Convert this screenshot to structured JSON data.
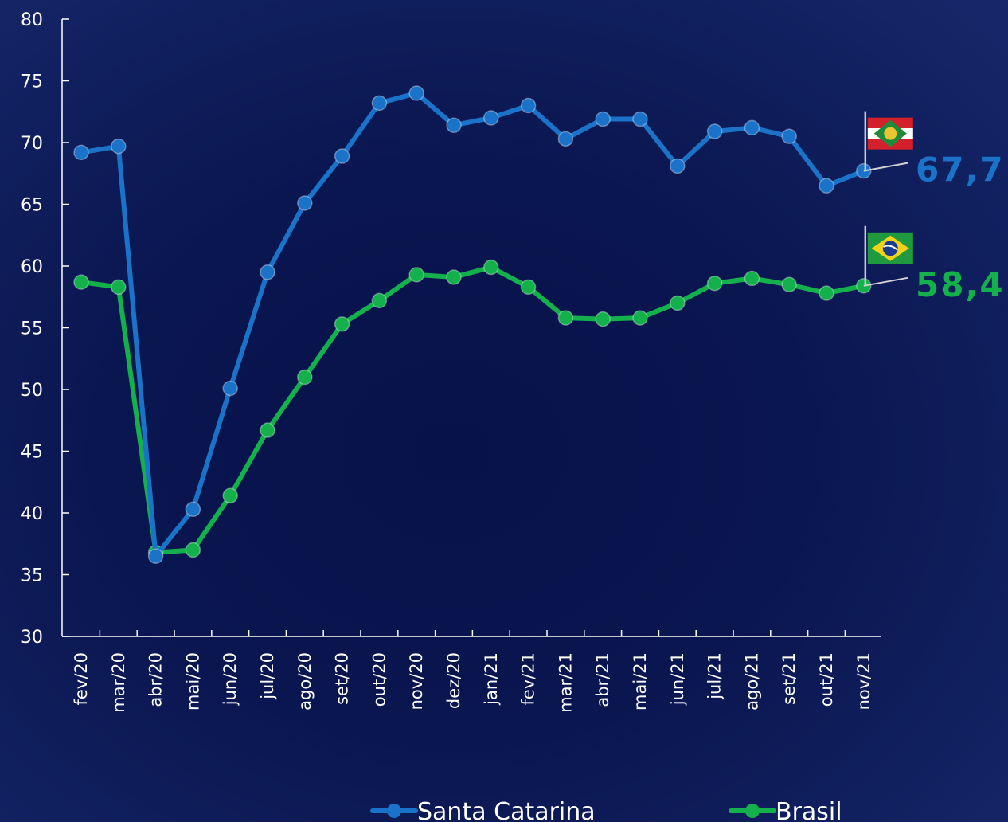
{
  "chart_data": {
    "type": "line",
    "categories": [
      "fev/20",
      "mar/20",
      "abr/20",
      "mai/20",
      "jun/20",
      "jul/20",
      "ago/20",
      "set/20",
      "out/20",
      "nov/20",
      "dez/20",
      "jan/21",
      "fev/21",
      "mar/21",
      "abr/21",
      "mai/21",
      "jun/21",
      "jul/21",
      "ago/21",
      "set/21",
      "out/21",
      "nov/21"
    ],
    "yticks": [
      "30",
      "35",
      "40",
      "45",
      "50",
      "55",
      "60",
      "65",
      "70",
      "75",
      "80"
    ],
    "ylim": [
      30,
      80
    ],
    "grid": false,
    "legend_position": "bottom",
    "series": [
      {
        "name": "Santa Catarina",
        "color": "#1a73c8",
        "values": [
          69.2,
          69.7,
          36.5,
          40.3,
          50.1,
          59.5,
          65.1,
          68.9,
          73.2,
          74.0,
          71.4,
          72.0,
          73.0,
          70.3,
          71.9,
          71.9,
          68.1,
          70.9,
          71.2,
          70.5,
          66.5,
          67.7
        ],
        "end_label": "67,7",
        "flag_icon": "santa-catarina-flag-icon"
      },
      {
        "name": "Brasil",
        "color": "#13b04b",
        "values": [
          58.7,
          58.3,
          36.8,
          37.0,
          41.4,
          46.7,
          51.0,
          55.3,
          57.2,
          59.3,
          59.1,
          59.9,
          58.3,
          55.8,
          55.7,
          55.8,
          57.0,
          58.6,
          59.0,
          58.5,
          57.8,
          58.4
        ],
        "end_label": "58,4",
        "flag_icon": "brazil-flag-icon"
      }
    ]
  }
}
